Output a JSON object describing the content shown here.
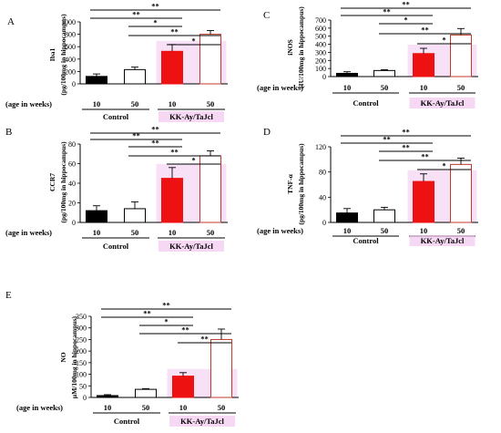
{
  "colors": {
    "black_bar": "#000000",
    "white_bar": "#ffffff",
    "red_bar": "#ee1111",
    "outline_red": "#c0392b",
    "highlight": "#f3c8f0",
    "group_red_text": "#e0001a"
  },
  "labels": {
    "age_label": "(age in weeks)",
    "age_values": [
      "10",
      "50",
      "10",
      "50"
    ],
    "group_control": "Control",
    "group_kk": "KK-Ay/TaJcl"
  },
  "chart_data": [
    {
      "type": "bar",
      "panel": "A",
      "ylabel": [
        "Iba1",
        "(pg/100mg in hippocampus)"
      ],
      "ylim": [
        0,
        1000
      ],
      "yticks": [
        "0",
        "200",
        "400",
        "600",
        "800",
        "1000"
      ],
      "categories": [
        "10",
        "50",
        "10",
        "50"
      ],
      "values": [
        120,
        230,
        525,
        800
      ],
      "errors": [
        40,
        40,
        110,
        60
      ],
      "significance": [
        "**",
        "**",
        "*",
        "**",
        "*"
      ]
    },
    {
      "type": "bar",
      "panel": "C",
      "ylabel": [
        "iNOS",
        "(IU/100mg in hippocampus)"
      ],
      "ylim": [
        0,
        700
      ],
      "yticks": [
        "0",
        "100",
        "200",
        "300",
        "400",
        "500",
        "600",
        "700"
      ],
      "categories": [
        "10",
        "50",
        "10",
        "50"
      ],
      "values": [
        40,
        75,
        285,
        515
      ],
      "errors": [
        20,
        10,
        65,
        80
      ],
      "significance": [
        "**",
        "**",
        "*",
        "**",
        "*"
      ]
    },
    {
      "type": "bar",
      "panel": "B",
      "ylabel": [
        "CCR7",
        "(pg/100mg in hippocampus)"
      ],
      "ylim": [
        0,
        80
      ],
      "yticks": [
        "0",
        "20",
        "40",
        "60",
        "80"
      ],
      "categories": [
        "10",
        "50",
        "10",
        "50"
      ],
      "values": [
        12,
        14,
        45,
        68
      ],
      "errors": [
        5,
        7,
        11,
        5
      ],
      "significance": [
        "**",
        "**",
        "**",
        "**",
        "*"
      ]
    },
    {
      "type": "bar",
      "panel": "D",
      "ylabel": [
        "TNF-α",
        "(pg/100mg in hippocampus)"
      ],
      "ylim": [
        0,
        120
      ],
      "yticks": [
        "0",
        "40",
        "80",
        "120"
      ],
      "categories": [
        "10",
        "50",
        "10",
        "50"
      ],
      "values": [
        15,
        20,
        65,
        92
      ],
      "errors": [
        7,
        4,
        12,
        10
      ],
      "significance": [
        "**",
        "**",
        "**",
        "**",
        "*"
      ]
    },
    {
      "type": "bar",
      "panel": "E",
      "ylabel": [
        "NO",
        "μM/100mg in hippocampus)"
      ],
      "ylim": [
        0,
        350
      ],
      "yticks": [
        "0",
        "50",
        "100",
        "150",
        "200",
        "250",
        "300",
        "350"
      ],
      "categories": [
        "10",
        "50",
        "10",
        "50"
      ],
      "values": [
        8,
        35,
        92,
        250
      ],
      "errors": [
        4,
        3,
        15,
        45
      ],
      "significance": [
        "**",
        "**",
        "*",
        "**",
        "**"
      ]
    }
  ]
}
